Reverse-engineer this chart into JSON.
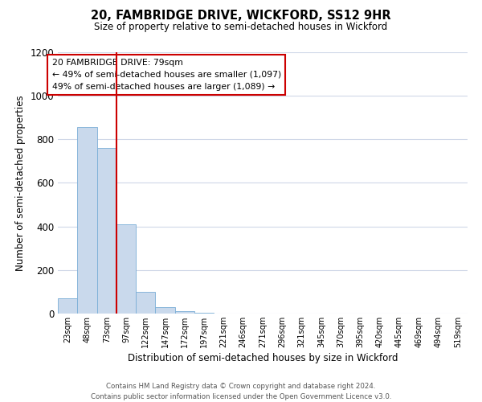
{
  "title": "20, FAMBRIDGE DRIVE, WICKFORD, SS12 9HR",
  "subtitle": "Size of property relative to semi-detached houses in Wickford",
  "xlabel": "Distribution of semi-detached houses by size in Wickford",
  "ylabel": "Number of semi-detached properties",
  "bar_color": "#c9d9ec",
  "bar_edge_color": "#7aaed6",
  "grid_color": "#d0d8e8",
  "background_color": "#ffffff",
  "annotation_box_color": "#ffffff",
  "annotation_box_edge_color": "#cc0000",
  "vline_color": "#cc0000",
  "annotation_text_line1": "20 FAMBRIDGE DRIVE: 79sqm",
  "annotation_text_line2": "← 49% of semi-detached houses are smaller (1,097)",
  "annotation_text_line3": "49% of semi-detached houses are larger (1,089) →",
  "footer_line1": "Contains HM Land Registry data © Crown copyright and database right 2024.",
  "footer_line2": "Contains public sector information licensed under the Open Government Licence v3.0.",
  "categories": [
    "23sqm",
    "48sqm",
    "73sqm",
    "97sqm",
    "122sqm",
    "147sqm",
    "172sqm",
    "197sqm",
    "221sqm",
    "246sqm",
    "271sqm",
    "296sqm",
    "321sqm",
    "345sqm",
    "370sqm",
    "395sqm",
    "420sqm",
    "445sqm",
    "469sqm",
    "494sqm",
    "519sqm"
  ],
  "values": [
    70,
    855,
    760,
    410,
    100,
    28,
    10,
    3,
    0,
    0,
    0,
    0,
    0,
    0,
    0,
    0,
    0,
    0,
    0,
    0,
    0
  ],
  "ylim": [
    0,
    1200
  ],
  "yticks": [
    0,
    200,
    400,
    600,
    800,
    1000,
    1200
  ],
  "vline_x": 2.5,
  "fig_width": 6.0,
  "fig_height": 5.0,
  "dpi": 100
}
